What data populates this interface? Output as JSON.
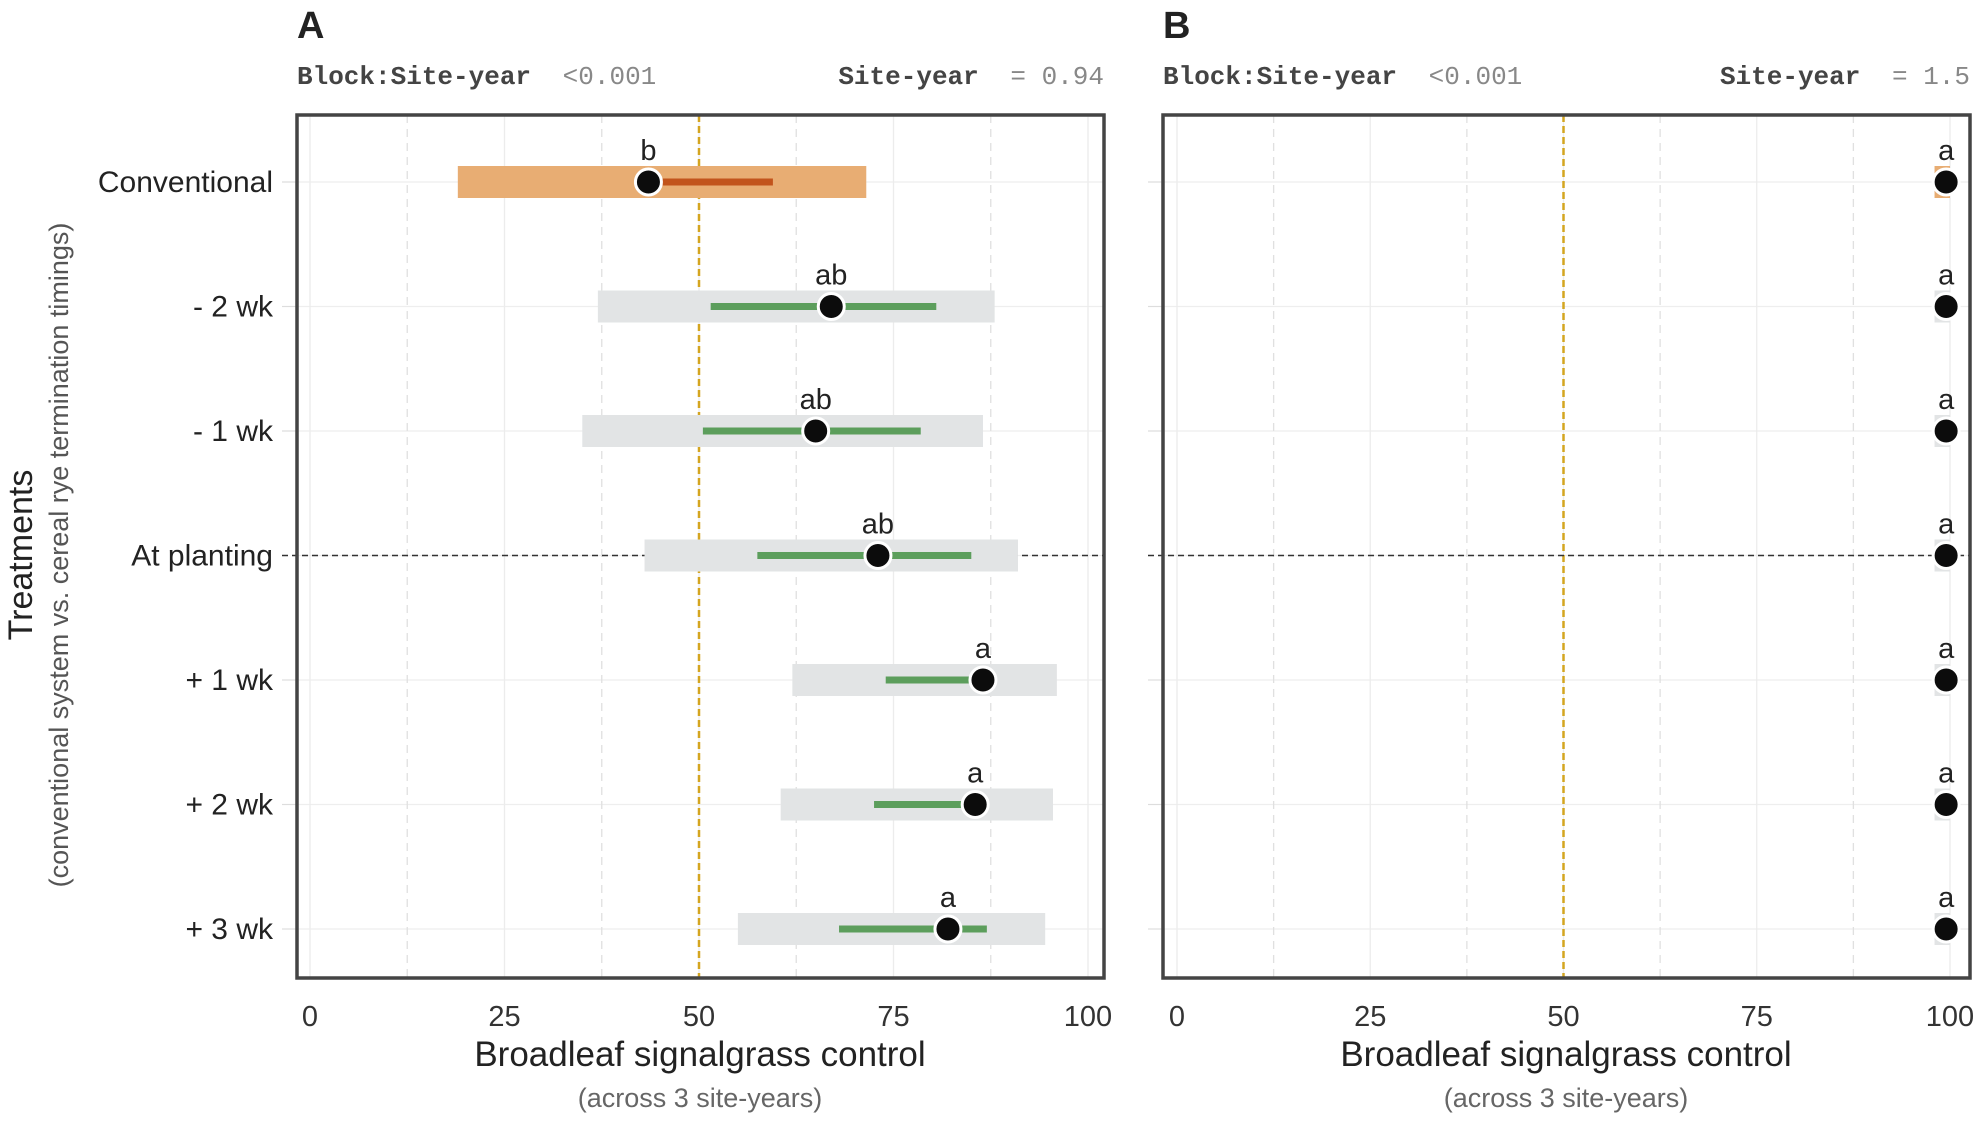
{
  "chart_data": {
    "type": "interval-dot",
    "y_title": "Treatments",
    "y_subtitle": "(conventional system vs. cereal rye termination timings)",
    "categories": [
      "Conventional",
      "- 2 wk",
      "- 1 wk",
      "At planting",
      "+ 1 wk",
      "+ 2 wk",
      "+ 3 wk"
    ],
    "colors": {
      "conventional_wide": "#e8ad73",
      "conventional_narrow": "#c2541c",
      "treatment_wide": "#e2e4e5",
      "treatment_narrow": "#5c9e5c",
      "reference_line": "#d4a520",
      "point": "#0c0c0c"
    },
    "reference_x": 50,
    "reference_category": "At planting",
    "panels": [
      {
        "label": "A",
        "stats": [
          {
            "name": "Block:Site-year",
            "value": "<0.001"
          },
          {
            "name": "Site-year",
            "value": "= 0.94"
          }
        ],
        "xlabel": "Broadleaf signalgrass control",
        "xsublabel": "(across 3 site-years)",
        "xlim": [
          0,
          100
        ],
        "xticks": [
          "0",
          "25",
          "50",
          "75",
          "100"
        ],
        "series": [
          {
            "category": "Conventional",
            "estimate": 43.5,
            "ci_narrow": [
              44,
              59.5
            ],
            "ci_wide": [
              19,
              71.5
            ],
            "letter": "b"
          },
          {
            "category": "- 2 wk",
            "estimate": 67,
            "ci_narrow": [
              51.5,
              80.5
            ],
            "ci_wide": [
              37,
              88
            ],
            "letter": "ab"
          },
          {
            "category": "- 1 wk",
            "estimate": 65,
            "ci_narrow": [
              50.5,
              78.5
            ],
            "ci_wide": [
              35,
              86.5
            ],
            "letter": "ab"
          },
          {
            "category": "At planting",
            "estimate": 73,
            "ci_narrow": [
              57.5,
              85
            ],
            "ci_wide": [
              43,
              91
            ],
            "letter": "ab"
          },
          {
            "category": "+ 1 wk",
            "estimate": 86.5,
            "ci_narrow": [
              74,
              86.5
            ],
            "ci_wide": [
              62,
              96
            ],
            "letter": "a"
          },
          {
            "category": "+ 2 wk",
            "estimate": 85.5,
            "ci_narrow": [
              72.5,
              85.5
            ],
            "ci_wide": [
              60.5,
              95.5
            ],
            "letter": "a"
          },
          {
            "category": "+ 3 wk",
            "estimate": 82,
            "ci_narrow": [
              68,
              87
            ],
            "ci_wide": [
              55,
              94.5
            ],
            "letter": "a"
          }
        ]
      },
      {
        "label": "B",
        "stats": [
          {
            "name": "Block:Site-year",
            "value": "<0.001"
          },
          {
            "name": "Site-year",
            "value": "= 1.5"
          }
        ],
        "xlabel": "Broadleaf signalgrass control",
        "xsublabel": "(across 3 site-years)",
        "xlim": [
          0,
          100
        ],
        "xticks": [
          "0",
          "25",
          "50",
          "75",
          "100"
        ],
        "series": [
          {
            "category": "Conventional",
            "estimate": 99.5,
            "ci_narrow": [
              99.5,
              99.5
            ],
            "ci_wide": [
              98,
              100
            ],
            "letter": "a"
          },
          {
            "category": "- 2 wk",
            "estimate": 99.5,
            "ci_narrow": [
              99.5,
              99.5
            ],
            "ci_wide": [
              98,
              100
            ],
            "letter": "a"
          },
          {
            "category": "- 1 wk",
            "estimate": 99.5,
            "ci_narrow": [
              99.5,
              99.5
            ],
            "ci_wide": [
              98,
              100
            ],
            "letter": "a"
          },
          {
            "category": "At planting",
            "estimate": 99.5,
            "ci_narrow": [
              99.5,
              99.5
            ],
            "ci_wide": [
              98,
              100
            ],
            "letter": "a"
          },
          {
            "category": "+ 1 wk",
            "estimate": 99.5,
            "ci_narrow": [
              99.5,
              99.5
            ],
            "ci_wide": [
              98,
              100
            ],
            "letter": "a"
          },
          {
            "category": "+ 2 wk",
            "estimate": 99.5,
            "ci_narrow": [
              99.5,
              99.5
            ],
            "ci_wide": [
              98,
              100
            ],
            "letter": "a"
          },
          {
            "category": "+ 3 wk",
            "estimate": 99.5,
            "ci_narrow": [
              99.5,
              99.5
            ],
            "ci_wide": [
              98,
              100
            ],
            "letter": "a"
          }
        ]
      }
    ]
  }
}
